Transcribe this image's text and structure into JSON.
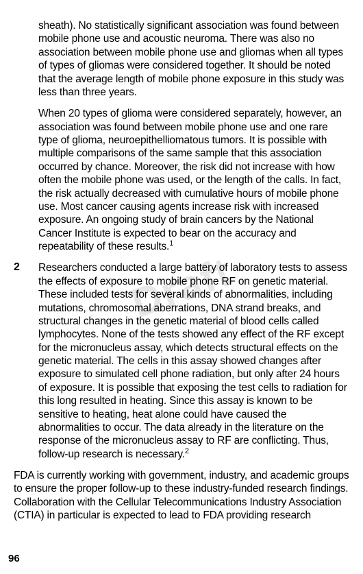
{
  "watermark": "Draft",
  "para1": "sheath). No statistically significant association was found between mobile phone use and acoustic neuroma. There was also no association between mobile phone use and gliomas when all types of types of gliomas were considered together. It should be noted that the average length of mobile phone exposure in this study was less than three years.",
  "para2_a": "When 20 types of glioma were considered separately, however, an association was found between mobile phone use and one rare type of glioma, neuroepithelliomatous tumors. It is possible with multiple comparisons of the same sample that this association occurred by chance. Moreover, the risk did not increase with how often the mobile phone was used, or the length of the calls. In fact, the risk actually decreased with cumulative hours of mobile phone use. Most cancer causing agents increase risk with increased exposure. An ongoing study of brain cancers by the National Cancer Institute is expected to bear on the accuracy and repeatability of these results.",
  "para2_sup": "1",
  "item2_num": "2",
  "item2_text_a": "Researchers conducted a large battery of laboratory tests to assess the effects of exposure to mobile phone RF on genetic material. These included tests for several kinds of abnormalities, including mutations, chromosomal aberrations, DNA strand breaks, and structural changes in the genetic material of blood cells called lymphocytes. None of the tests showed any effect of the RF except for the micronucleus assay, which detects structural effects on the genetic material. The cells in this assay showed changes after exposure to simulated cell phone radiation, but only after 24 hours of exposure. It is possible that exposing the test cells to radiation for this long resulted in heating. Since this assay is known to be sensitive to heating, heat alone could have caused the abnormalities to occur. The data already in the literature on the response of the micronucleus assay to RF are conflicting. Thus, follow-up research is necessary.",
  "item2_sup": "2",
  "para3": "FDA is currently working with government, industry, and academic groups to ensure the proper follow-up to these industry-funded research findings. Collaboration with the Cellular Telecommunications Industry Association (CTIA) in particular is expected to lead to FDA providing research",
  "pageNumber": "96",
  "colors": {
    "text": "#000000",
    "background": "#ffffff",
    "watermark": "#d0d0d0"
  },
  "typography": {
    "body_fontsize": 15.5,
    "pagenum_fontsize": 15,
    "lineheight": 1.25
  }
}
